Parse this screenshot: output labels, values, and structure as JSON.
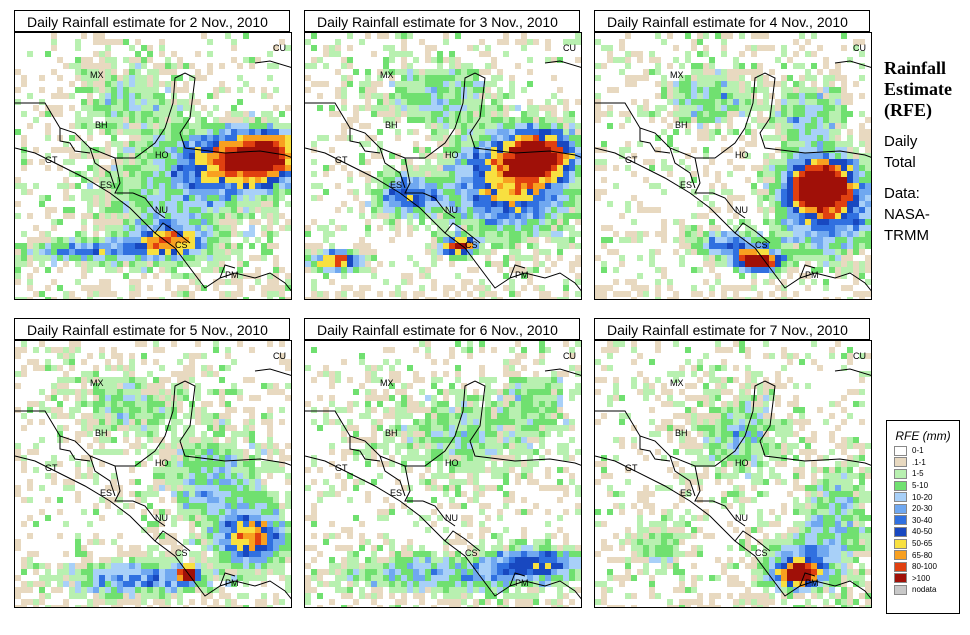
{
  "panels": [
    {
      "title": "Daily Rainfall estimate for  2 Nov., 2010"
    },
    {
      "title": "Daily Rainfall estimate for  3 Nov., 2010"
    },
    {
      "title": "Daily Rainfall estimate for  4 Nov., 2010"
    },
    {
      "title": "Daily Rainfall estimate for  5 Nov., 2010"
    },
    {
      "title": "Daily Rainfall estimate for  6 Nov., 2010"
    },
    {
      "title": "Daily Rainfall estimate for  7 Nov., 2010"
    }
  ],
  "country_labels": {
    "mx": "MX",
    "bh": "BH",
    "gt": "GT",
    "ho": "HO",
    "es": "ES",
    "nu": "NU",
    "cs": "CS",
    "pm": "PM",
    "cu": "CU"
  },
  "side": {
    "title_line1": "Rainfall",
    "title_line2": "Estimate",
    "title_line3": "(RFE)",
    "daily": "Daily",
    "total": "Total",
    "data_label": "Data:",
    "source1": "NASA-",
    "source2": "TRMM"
  },
  "legend": {
    "title": "RFE (mm)",
    "items": [
      {
        "label": "0-1",
        "color": "#ffffff"
      },
      {
        "label": ".1-1",
        "color": "#e8d9c0"
      },
      {
        "label": "1-5",
        "color": "#b8f0b0"
      },
      {
        "label": "5-10",
        "color": "#70e070"
      },
      {
        "label": "10-20",
        "color": "#a8d0f8"
      },
      {
        "label": "20-30",
        "color": "#70a8f0"
      },
      {
        "label": "30-40",
        "color": "#3070e0"
      },
      {
        "label": "40-50",
        "color": "#1848c0"
      },
      {
        "label": "50-65",
        "color": "#f8e040"
      },
      {
        "label": "65-80",
        "color": "#f8a020"
      },
      {
        "label": "80-100",
        "color": "#e04010"
      },
      {
        "label": ">100",
        "color": "#a01008"
      },
      {
        "label": "nodata",
        "color": "#c8c8c8"
      }
    ]
  }
}
